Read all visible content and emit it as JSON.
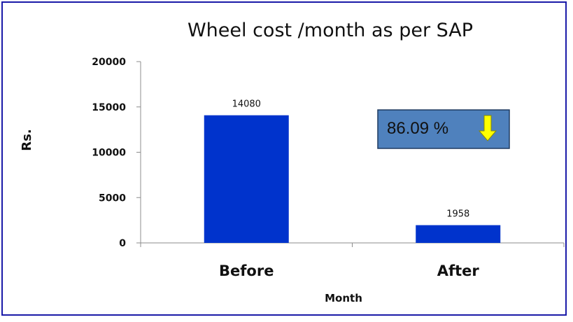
{
  "chart_data": {
    "type": "bar",
    "title": "Wheel cost /month as per SAP",
    "xlabel": "Month",
    "ylabel": "Rs.",
    "categories": [
      "Before",
      "After"
    ],
    "values": [
      14080,
      1958
    ],
    "data_labels": [
      "14080",
      "1958"
    ],
    "ylim": [
      0,
      20000
    ],
    "yticks": [
      0,
      5000,
      10000,
      15000,
      20000
    ],
    "ytick_labels": [
      "0",
      "5000",
      "10000",
      "15000",
      "20000"
    ],
    "grid": false,
    "legend": "none",
    "bar_color": "#0033cc",
    "callout": {
      "text": "86.09 %",
      "box_color": "#4f81bd",
      "arrow_color": "#ffff00",
      "arrow_direction": "down"
    }
  },
  "frame_color": "#1a1aa8"
}
